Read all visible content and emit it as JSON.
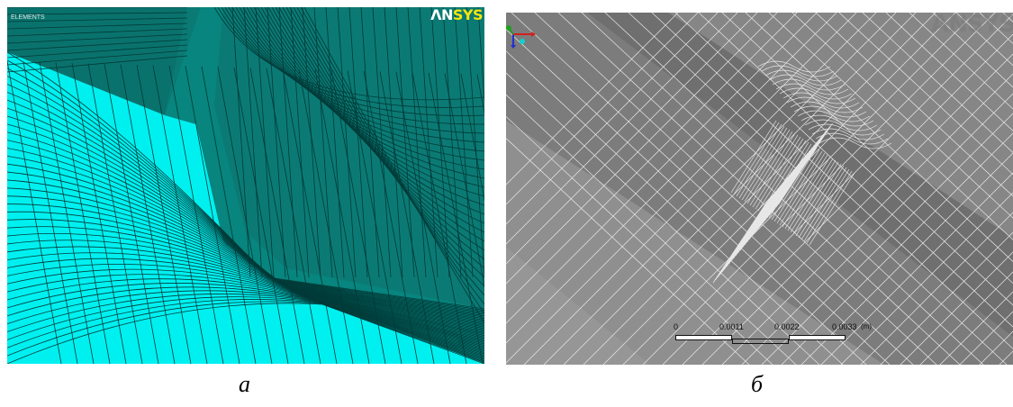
{
  "panel_a": {
    "logo_an": "ΛN",
    "logo_sys": "SYS",
    "label": "ELEMENTS",
    "caption": "a",
    "colors": {
      "background": "#0b7a74",
      "surface": "#00f0f0",
      "mesh": "#003a38"
    }
  },
  "panel_b": {
    "watermark": "ANSYS",
    "caption": "б",
    "scale": {
      "ticks": [
        "0",
        "0.0011",
        "0.0022",
        "0.0033"
      ],
      "unit": "(m)"
    },
    "colors": {
      "background": "#868686",
      "mesh": "#e8e8e8"
    },
    "triad": {
      "icon": "axis-triad-icon"
    }
  }
}
